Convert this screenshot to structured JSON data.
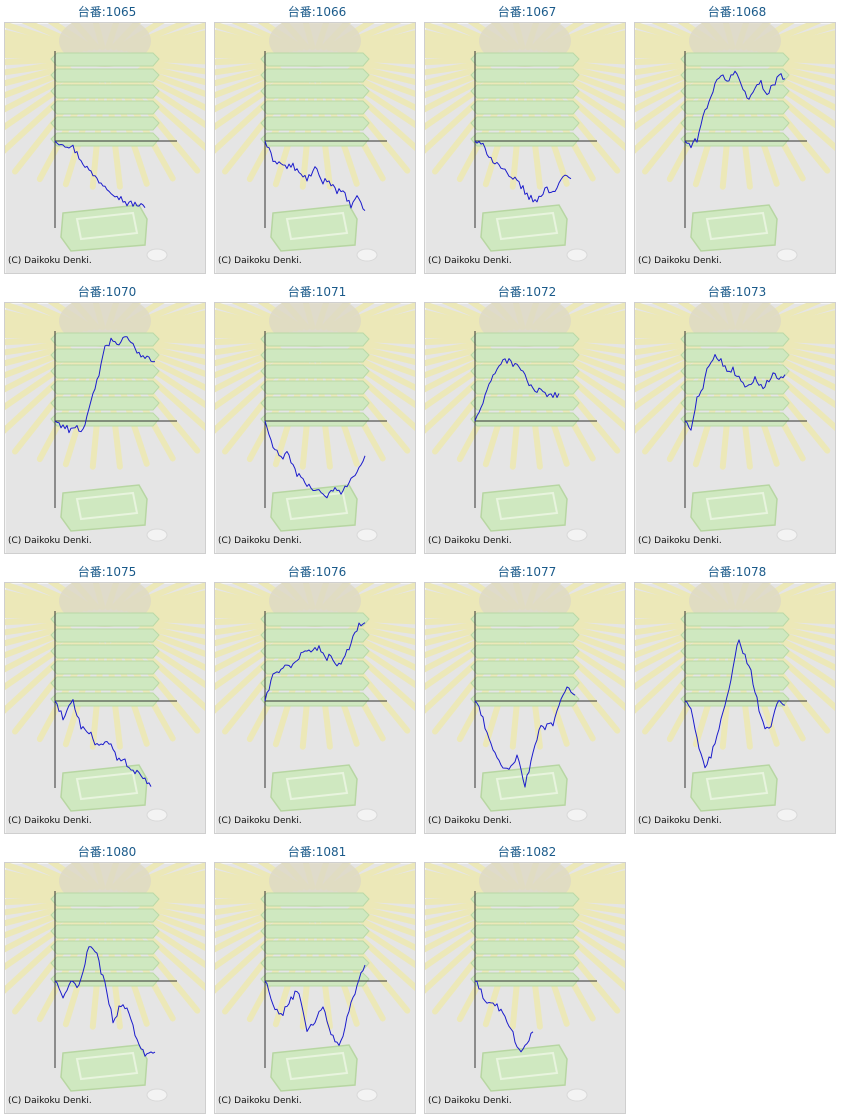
{
  "copyright": "(C) Daikoku Denki.",
  "colors": {
    "title": "#1a5a8a",
    "line": "#1c1ccc",
    "axis": "#333333",
    "panel_bg": "#e5e5e5"
  },
  "machines": [
    {
      "label": "台番:1065",
      "chart_data": {
        "type": "line",
        "values": [
          0,
          -0.18,
          -0.45,
          -1.4,
          -2.2,
          -2.8,
          -3.3,
          -3.8,
          -4.3,
          -4.35,
          -4.6
        ]
      }
    },
    {
      "label": "台番:1066",
      "chart_data": {
        "type": "line",
        "values": [
          0,
          -1.2,
          -1.5,
          -1.8,
          -1.7,
          -2.4,
          -2.6,
          -1.9,
          -2.8,
          -2.7,
          -3.4,
          -3.6,
          -4.5,
          -3.9,
          -4.8
        ]
      }
    },
    {
      "label": "台番:1067",
      "chart_data": {
        "type": "line",
        "values": [
          0,
          -0.4,
          -1.3,
          -1.8,
          -2.6,
          -2.8,
          -3.8,
          -4.2,
          -3.3,
          -3.5,
          -2.5,
          -2.6
        ]
      }
    },
    {
      "label": "台番:1068",
      "chart_data": {
        "type": "line",
        "values": [
          0,
          -0.4,
          0.2,
          1.8,
          3.0,
          4.0,
          4.5,
          4.2,
          4.8,
          3.9,
          3.0,
          3.4,
          4.1,
          3.3,
          3.8,
          4.5,
          4.3
        ]
      }
    },
    {
      "label": "台番:1070",
      "chart_data": {
        "type": "line",
        "values": [
          0,
          -0.3,
          -0.6,
          -0.3,
          -0.8,
          1.2,
          3.0,
          5.0,
          5.6,
          5.3,
          5.8,
          5.1,
          4.6,
          4.4,
          4.1
        ]
      }
    },
    {
      "label": "台番:1071",
      "chart_data": {
        "type": "line",
        "values": [
          0,
          -1.8,
          -2.5,
          -2.3,
          -3.5,
          -4.2,
          -4.6,
          -4.8,
          -5.2,
          -4.7,
          -5.0,
          -4.0,
          -3.5,
          -2.4
        ]
      }
    },
    {
      "label": "台番:1072",
      "chart_data": {
        "type": "line",
        "values": [
          0,
          1.5,
          3.2,
          4.3,
          4.0,
          3.6,
          2.3,
          2.0,
          1.6,
          1.9
        ]
      }
    },
    {
      "label": "台番:1073",
      "chart_data": {
        "type": "line",
        "values": [
          0,
          -0.5,
          1.5,
          2.2,
          3.9,
          4.6,
          4.3,
          3.5,
          3.6,
          3.1,
          2.5,
          2.6,
          2.9,
          2.4,
          2.6,
          3.5,
          2.8,
          3.2
        ]
      }
    },
    {
      "label": "台番:1075",
      "chart_data": {
        "type": "line",
        "values": [
          0,
          -1.2,
          0,
          -1.8,
          -2.1,
          -3.3,
          -2.6,
          -3.9,
          -4.2,
          -4.9,
          -5.1,
          -5.9
        ]
      }
    },
    {
      "label": "台番:1076",
      "chart_data": {
        "type": "line",
        "values": [
          0,
          1.6,
          2.0,
          2.3,
          2.5,
          3.0,
          3.6,
          3.3,
          3.8,
          2.9,
          3.1,
          2.5,
          3.1,
          4.0,
          5.3,
          5.4
        ]
      }
    },
    {
      "label": "台番:1077",
      "chart_data": {
        "type": "line",
        "values": [
          0,
          -1.0,
          -2.8,
          -3.7,
          -4.5,
          -4.6,
          -3.8,
          -5.8,
          -4.0,
          -1.8,
          -1.8,
          -1.5,
          -0.1,
          0.9,
          0.4
        ]
      }
    },
    {
      "label": "台番:1078",
      "chart_data": {
        "type": "line",
        "values": [
          0,
          -0.8,
          -3.0,
          -4.8,
          -3.6,
          -2.0,
          -0.3,
          1.8,
          4.2,
          3.2,
          1.8,
          -0.3,
          -2.1,
          -1.6,
          0,
          -0.3
        ]
      }
    },
    {
      "label": "台番:1080",
      "chart_data": {
        "type": "line",
        "values": [
          0,
          -1.2,
          0,
          -0.4,
          2.5,
          1.8,
          -0.3,
          -2.8,
          -1.5,
          -2.2,
          -4.5,
          -5.1,
          -4.9
        ]
      }
    },
    {
      "label": "台番:1081",
      "chart_data": {
        "type": "line",
        "values": [
          0,
          -1.6,
          -2.4,
          -1.4,
          -0.6,
          -3.5,
          -2.8,
          -1.6,
          -3.8,
          -4.5,
          -2.2,
          -0.4,
          1.1
        ]
      }
    },
    {
      "label": "台番:1082",
      "chart_data": {
        "type": "line",
        "values": [
          0,
          -1.5,
          -1.8,
          -3.2,
          -5.0,
          -3.5
        ]
      }
    }
  ]
}
